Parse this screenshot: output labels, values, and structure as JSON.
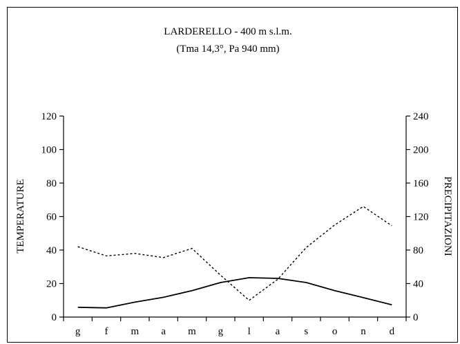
{
  "chart_data": {
    "type": "line",
    "title": "LARDERELLO - 400 m s.l.m.",
    "subtitle": "(Tma  14,3°, Pa  940 mm)",
    "categories": [
      "g",
      "f",
      "m",
      "a",
      "m",
      "g",
      "l",
      "a",
      "s",
      "o",
      "n",
      "d"
    ],
    "y_left": {
      "label": "TEMPERATURE",
      "ylim": [
        0,
        120
      ],
      "ticks": [
        0,
        20,
        40,
        60,
        80,
        100,
        120
      ]
    },
    "y_right": {
      "label": "PRECIPITAZIONI",
      "ylim": [
        0,
        240
      ],
      "ticks": [
        0,
        40,
        80,
        120,
        160,
        200,
        240
      ]
    },
    "series": [
      {
        "axis": "left",
        "style": "solid",
        "color": "#000000",
        "values": [
          5.8,
          5.5,
          8.9,
          11.8,
          15.8,
          20.6,
          23.5,
          23.1,
          20.6,
          15.8,
          11.6,
          7.3
        ]
      },
      {
        "axis": "right",
        "style": "dotted",
        "color": "#000000",
        "values": [
          84,
          73,
          76,
          71,
          82,
          50,
          20,
          45,
          83,
          110,
          132,
          109
        ]
      }
    ],
    "grid": false,
    "legend": "none"
  }
}
